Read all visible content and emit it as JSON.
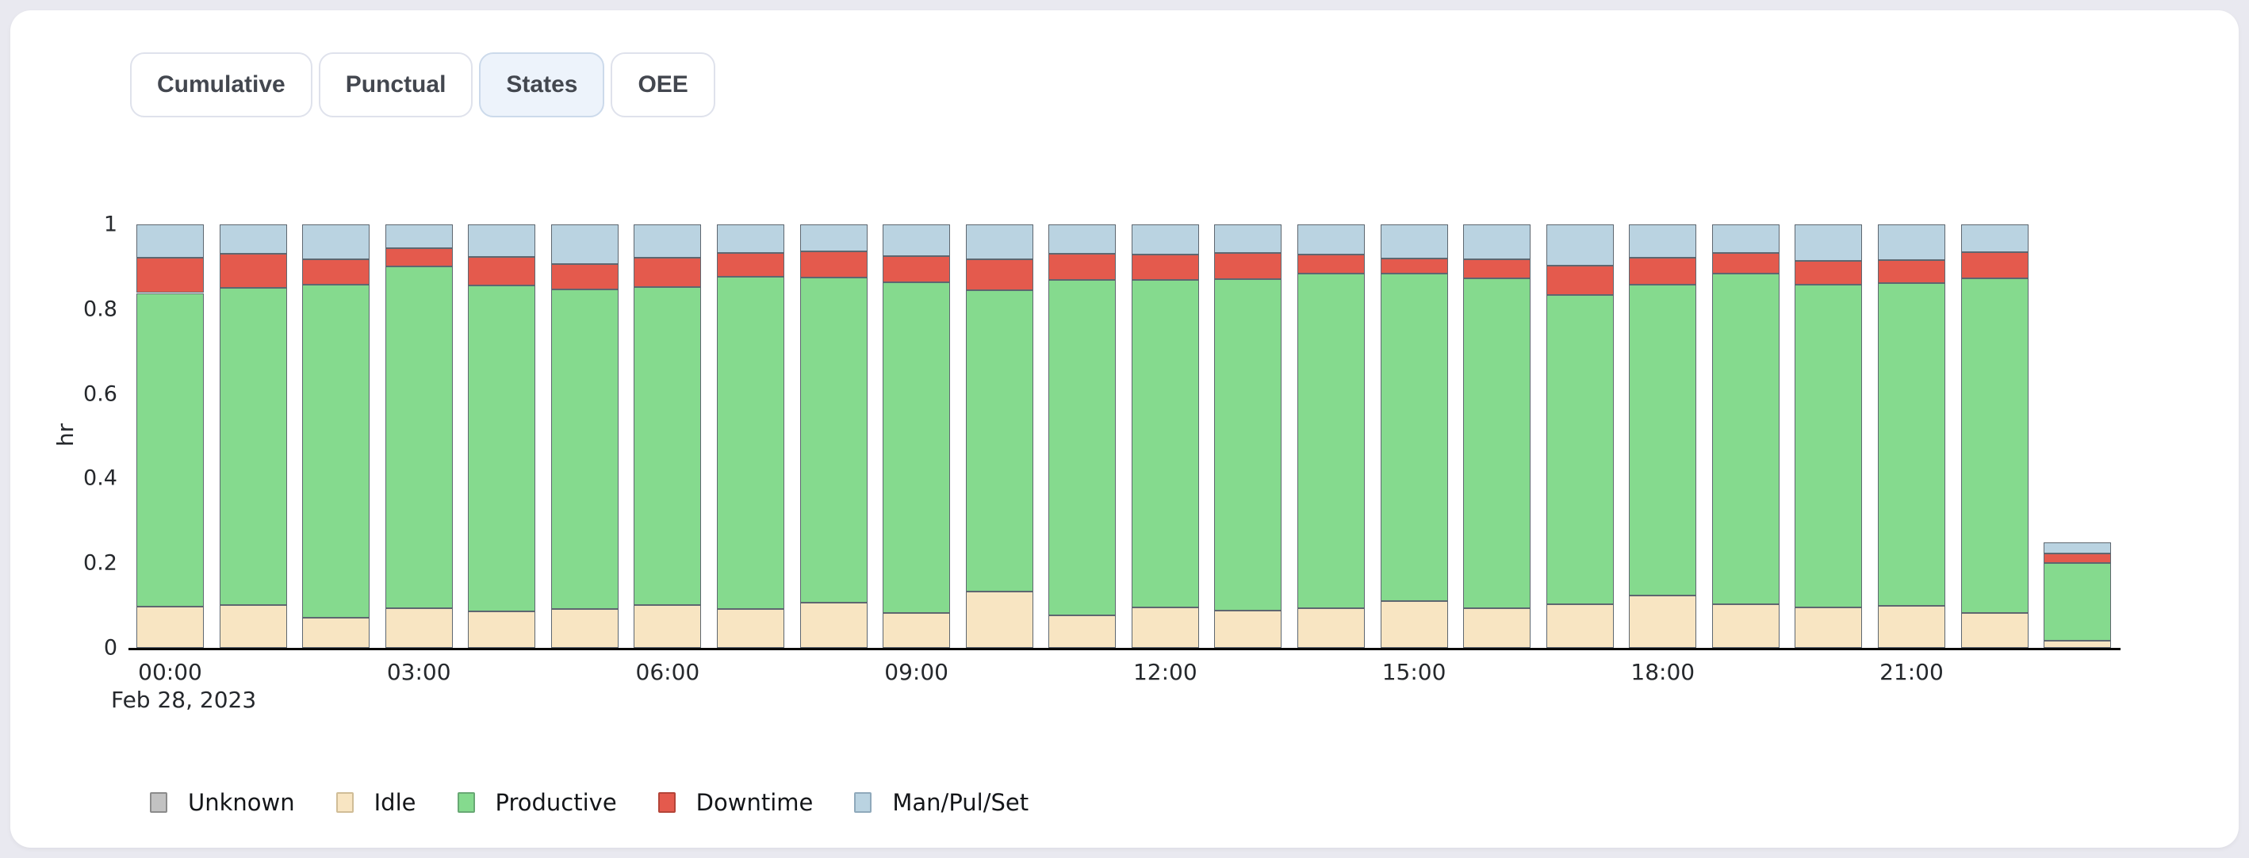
{
  "page": {
    "background": "#e9e9f0",
    "card_background": "#ffffff"
  },
  "tabs": {
    "items": [
      {
        "label": "Cumulative",
        "active": false
      },
      {
        "label": "Punctual",
        "active": false
      },
      {
        "label": "States",
        "active": true
      },
      {
        "label": "OEE",
        "active": false
      }
    ],
    "active_bg": "#edf3fb"
  },
  "chart_data": {
    "type": "bar",
    "stacked": true,
    "title": "",
    "ylabel": "hr",
    "date_label": "Feb 28, 2023",
    "ylim": [
      0,
      1
    ],
    "grid": false,
    "legend_position": "bottom-left",
    "y_ticks": [
      "0",
      "0.2",
      "0.4",
      "0.6",
      "0.8",
      "1"
    ],
    "y_tick_values": [
      0,
      0.2,
      0.4,
      0.6,
      0.8,
      1
    ],
    "x_ticks": [
      "00:00",
      "03:00",
      "06:00",
      "09:00",
      "12:00",
      "15:00",
      "18:00",
      "21:00"
    ],
    "x_tick_hours": [
      0,
      3,
      6,
      9,
      12,
      15,
      18,
      21
    ],
    "categories": [
      "00:00",
      "01:00",
      "02:00",
      "03:00",
      "04:00",
      "05:00",
      "06:00",
      "07:00",
      "08:00",
      "09:00",
      "10:00",
      "11:00",
      "12:00",
      "13:00",
      "14:00",
      "15:00",
      "16:00",
      "17:00",
      "18:00",
      "19:00",
      "20:00",
      "21:00",
      "22:00",
      "23:00"
    ],
    "series": [
      {
        "name": "Unknown",
        "color": "#c2c2c2",
        "swatch_border": "#8b8b8b",
        "values": [
          0,
          0,
          0,
          0,
          0,
          0,
          0,
          0,
          0,
          0,
          0,
          0,
          0,
          0,
          0,
          0,
          0,
          0,
          0,
          0,
          0,
          0,
          0,
          0
        ]
      },
      {
        "name": "Idle",
        "color": "#f8e5c2",
        "swatch_border": "#d0bd97",
        "values": [
          0.097,
          0.102,
          0.072,
          0.093,
          0.087,
          0.092,
          0.102,
          0.092,
          0.107,
          0.083,
          0.133,
          0.077,
          0.095,
          0.088,
          0.094,
          0.11,
          0.093,
          0.103,
          0.124,
          0.103,
          0.095,
          0.099,
          0.083,
          0.016
        ]
      },
      {
        "name": "Productive",
        "color": "#85da8e",
        "swatch_border": "#68a874",
        "values": [
          0.741,
          0.748,
          0.785,
          0.807,
          0.769,
          0.754,
          0.75,
          0.785,
          0.768,
          0.781,
          0.711,
          0.791,
          0.774,
          0.783,
          0.789,
          0.774,
          0.78,
          0.731,
          0.733,
          0.78,
          0.762,
          0.762,
          0.79,
          0.185
        ]
      },
      {
        "name": "Downtime",
        "color": "#e45a4d",
        "swatch_border": "#b44438",
        "values": [
          0.083,
          0.08,
          0.061,
          0.044,
          0.067,
          0.061,
          0.069,
          0.055,
          0.062,
          0.062,
          0.074,
          0.063,
          0.059,
          0.061,
          0.046,
          0.036,
          0.045,
          0.069,
          0.064,
          0.049,
          0.056,
          0.054,
          0.062,
          0.022
        ]
      },
      {
        "name": "Man/Pul/Set",
        "color": "#bad3e1",
        "swatch_border": "#8fa9bb",
        "values": [
          0.079,
          0.07,
          0.082,
          0.056,
          0.077,
          0.093,
          0.079,
          0.068,
          0.063,
          0.074,
          0.082,
          0.069,
          0.072,
          0.068,
          0.071,
          0.08,
          0.082,
          0.097,
          0.079,
          0.068,
          0.087,
          0.085,
          0.065,
          0.027
        ]
      }
    ]
  }
}
